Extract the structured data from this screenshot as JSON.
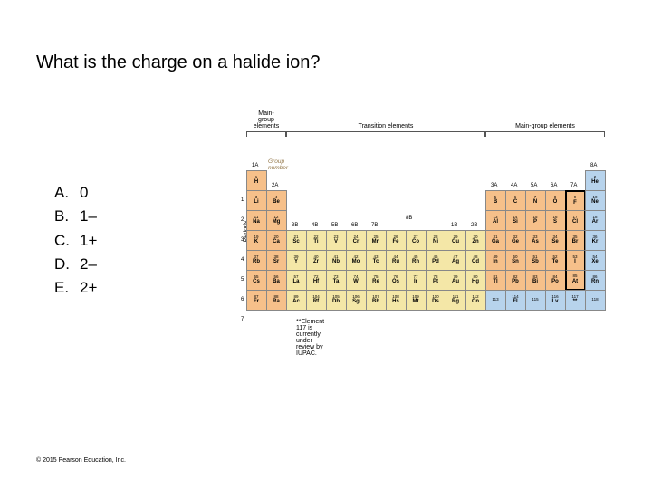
{
  "question": "What is the charge on a halide ion?",
  "choices": [
    {
      "letter": "A.",
      "text": "0"
    },
    {
      "letter": "B.",
      "text": "1–"
    },
    {
      "letter": "C.",
      "text": "1+"
    },
    {
      "letter": "D.",
      "text": "2–"
    },
    {
      "letter": "E.",
      "text": "2+"
    }
  ],
  "copyright": "© 2015  Pearson Education, Inc.",
  "ptable": {
    "group_number_label": "Group\nnumber",
    "braces": {
      "left_main": "Main-\ngroup\nelements",
      "transition": "Transition elements",
      "right_main": "Main-group elements"
    },
    "periods_label": "Periods",
    "period_numbers": [
      "1",
      "2",
      "3",
      "4",
      "5",
      "6",
      "7"
    ],
    "group_headers": {
      "g1": "1A",
      "g2": "2A",
      "g3": "3B",
      "g4": "4B",
      "g5": "5B",
      "g6": "6B",
      "g7": "7B",
      "g8": "8B",
      "g11": "1B",
      "g12": "2B",
      "g13": "3A",
      "g14": "4A",
      "g15": "5A",
      "g16": "6A",
      "g17": "7A",
      "g18": "8A"
    },
    "iupac_note": "**Element 117 is currently under review by IUPAC.",
    "colors": {
      "c-orange": "#f6c08a",
      "c-blue": "#b7d3ec",
      "c-yellow": "#f4e7a7",
      "c-grey": "#d6d6d6",
      "border": "#888888",
      "heavy": "#000000"
    },
    "elements": [
      {
        "r": 1,
        "c": 1,
        "n": "1",
        "s": "H",
        "cls": "c-orange"
      },
      {
        "r": 1,
        "c": 18,
        "n": "2",
        "s": "He",
        "cls": "c-blue"
      },
      {
        "r": 2,
        "c": 1,
        "n": "3",
        "s": "Li",
        "cls": "c-orange"
      },
      {
        "r": 2,
        "c": 2,
        "n": "4",
        "s": "Be",
        "cls": "c-orange"
      },
      {
        "r": 2,
        "c": 13,
        "n": "5",
        "s": "B",
        "cls": "c-orange"
      },
      {
        "r": 2,
        "c": 14,
        "n": "6",
        "s": "C",
        "cls": "c-orange"
      },
      {
        "r": 2,
        "c": 15,
        "n": "7",
        "s": "N",
        "cls": "c-orange"
      },
      {
        "r": 2,
        "c": 16,
        "n": "8",
        "s": "O",
        "cls": "c-orange"
      },
      {
        "r": 2,
        "c": 17,
        "n": "9",
        "s": "F",
        "cls": "c-orange"
      },
      {
        "r": 2,
        "c": 18,
        "n": "10",
        "s": "Ne",
        "cls": "c-blue"
      },
      {
        "r": 3,
        "c": 1,
        "n": "11",
        "s": "Na",
        "cls": "c-orange"
      },
      {
        "r": 3,
        "c": 2,
        "n": "12",
        "s": "Mg",
        "cls": "c-orange"
      },
      {
        "r": 3,
        "c": 13,
        "n": "13",
        "s": "Al",
        "cls": "c-orange"
      },
      {
        "r": 3,
        "c": 14,
        "n": "14",
        "s": "Si",
        "cls": "c-orange"
      },
      {
        "r": 3,
        "c": 15,
        "n": "15",
        "s": "P",
        "cls": "c-orange"
      },
      {
        "r": 3,
        "c": 16,
        "n": "16",
        "s": "S",
        "cls": "c-orange"
      },
      {
        "r": 3,
        "c": 17,
        "n": "17",
        "s": "Cl",
        "cls": "c-orange"
      },
      {
        "r": 3,
        "c": 18,
        "n": "18",
        "s": "Ar",
        "cls": "c-blue"
      },
      {
        "r": 4,
        "c": 1,
        "n": "19",
        "s": "K",
        "cls": "c-orange"
      },
      {
        "r": 4,
        "c": 2,
        "n": "20",
        "s": "Ca",
        "cls": "c-orange"
      },
      {
        "r": 4,
        "c": 3,
        "n": "21",
        "s": "Sc",
        "cls": "c-yellow"
      },
      {
        "r": 4,
        "c": 4,
        "n": "22",
        "s": "Ti",
        "cls": "c-yellow"
      },
      {
        "r": 4,
        "c": 5,
        "n": "23",
        "s": "V",
        "cls": "c-yellow"
      },
      {
        "r": 4,
        "c": 6,
        "n": "24",
        "s": "Cr",
        "cls": "c-yellow"
      },
      {
        "r": 4,
        "c": 7,
        "n": "25",
        "s": "Mn",
        "cls": "c-yellow"
      },
      {
        "r": 4,
        "c": 8,
        "n": "26",
        "s": "Fe",
        "cls": "c-yellow"
      },
      {
        "r": 4,
        "c": 9,
        "n": "27",
        "s": "Co",
        "cls": "c-yellow"
      },
      {
        "r": 4,
        "c": 10,
        "n": "28",
        "s": "Ni",
        "cls": "c-yellow"
      },
      {
        "r": 4,
        "c": 11,
        "n": "29",
        "s": "Cu",
        "cls": "c-yellow"
      },
      {
        "r": 4,
        "c": 12,
        "n": "30",
        "s": "Zn",
        "cls": "c-yellow"
      },
      {
        "r": 4,
        "c": 13,
        "n": "31",
        "s": "Ga",
        "cls": "c-orange"
      },
      {
        "r": 4,
        "c": 14,
        "n": "32",
        "s": "Ge",
        "cls": "c-orange"
      },
      {
        "r": 4,
        "c": 15,
        "n": "33",
        "s": "As",
        "cls": "c-orange"
      },
      {
        "r": 4,
        "c": 16,
        "n": "34",
        "s": "Se",
        "cls": "c-orange"
      },
      {
        "r": 4,
        "c": 17,
        "n": "35",
        "s": "Br",
        "cls": "c-orange"
      },
      {
        "r": 4,
        "c": 18,
        "n": "36",
        "s": "Kr",
        "cls": "c-blue"
      },
      {
        "r": 5,
        "c": 1,
        "n": "37",
        "s": "Rb",
        "cls": "c-orange"
      },
      {
        "r": 5,
        "c": 2,
        "n": "38",
        "s": "Sr",
        "cls": "c-orange"
      },
      {
        "r": 5,
        "c": 3,
        "n": "39",
        "s": "Y",
        "cls": "c-yellow"
      },
      {
        "r": 5,
        "c": 4,
        "n": "40",
        "s": "Zr",
        "cls": "c-yellow"
      },
      {
        "r": 5,
        "c": 5,
        "n": "41",
        "s": "Nb",
        "cls": "c-yellow"
      },
      {
        "r": 5,
        "c": 6,
        "n": "42",
        "s": "Mo",
        "cls": "c-yellow"
      },
      {
        "r": 5,
        "c": 7,
        "n": "43",
        "s": "Tc",
        "cls": "c-yellow"
      },
      {
        "r": 5,
        "c": 8,
        "n": "44",
        "s": "Ru",
        "cls": "c-yellow"
      },
      {
        "r": 5,
        "c": 9,
        "n": "45",
        "s": "Rh",
        "cls": "c-yellow"
      },
      {
        "r": 5,
        "c": 10,
        "n": "46",
        "s": "Pd",
        "cls": "c-yellow"
      },
      {
        "r": 5,
        "c": 11,
        "n": "47",
        "s": "Ag",
        "cls": "c-yellow"
      },
      {
        "r": 5,
        "c": 12,
        "n": "48",
        "s": "Cd",
        "cls": "c-yellow"
      },
      {
        "r": 5,
        "c": 13,
        "n": "49",
        "s": "In",
        "cls": "c-orange"
      },
      {
        "r": 5,
        "c": 14,
        "n": "50",
        "s": "Sn",
        "cls": "c-orange"
      },
      {
        "r": 5,
        "c": 15,
        "n": "51",
        "s": "Sb",
        "cls": "c-orange"
      },
      {
        "r": 5,
        "c": 16,
        "n": "52",
        "s": "Te",
        "cls": "c-orange"
      },
      {
        "r": 5,
        "c": 17,
        "n": "53",
        "s": "I",
        "cls": "c-orange"
      },
      {
        "r": 5,
        "c": 18,
        "n": "54",
        "s": "Xe",
        "cls": "c-blue"
      },
      {
        "r": 6,
        "c": 1,
        "n": "55",
        "s": "Cs",
        "cls": "c-orange"
      },
      {
        "r": 6,
        "c": 2,
        "n": "56",
        "s": "Ba",
        "cls": "c-orange"
      },
      {
        "r": 6,
        "c": 3,
        "n": "57",
        "s": "La",
        "cls": "c-yellow"
      },
      {
        "r": 6,
        "c": 4,
        "n": "72",
        "s": "Hf",
        "cls": "c-yellow"
      },
      {
        "r": 6,
        "c": 5,
        "n": "73",
        "s": "Ta",
        "cls": "c-yellow"
      },
      {
        "r": 6,
        "c": 6,
        "n": "74",
        "s": "W",
        "cls": "c-yellow"
      },
      {
        "r": 6,
        "c": 7,
        "n": "75",
        "s": "Re",
        "cls": "c-yellow"
      },
      {
        "r": 6,
        "c": 8,
        "n": "76",
        "s": "Os",
        "cls": "c-yellow"
      },
      {
        "r": 6,
        "c": 9,
        "n": "77",
        "s": "Ir",
        "cls": "c-yellow"
      },
      {
        "r": 6,
        "c": 10,
        "n": "78",
        "s": "Pt",
        "cls": "c-yellow"
      },
      {
        "r": 6,
        "c": 11,
        "n": "79",
        "s": "Au",
        "cls": "c-yellow"
      },
      {
        "r": 6,
        "c": 12,
        "n": "80",
        "s": "Hg",
        "cls": "c-yellow"
      },
      {
        "r": 6,
        "c": 13,
        "n": "81",
        "s": "Tl",
        "cls": "c-orange"
      },
      {
        "r": 6,
        "c": 14,
        "n": "82",
        "s": "Pb",
        "cls": "c-orange"
      },
      {
        "r": 6,
        "c": 15,
        "n": "83",
        "s": "Bi",
        "cls": "c-orange"
      },
      {
        "r": 6,
        "c": 16,
        "n": "84",
        "s": "Po",
        "cls": "c-orange"
      },
      {
        "r": 6,
        "c": 17,
        "n": "85",
        "s": "At",
        "cls": "c-orange"
      },
      {
        "r": 6,
        "c": 18,
        "n": "86",
        "s": "Rn",
        "cls": "c-blue"
      },
      {
        "r": 7,
        "c": 1,
        "n": "87",
        "s": "Fr",
        "cls": "c-orange"
      },
      {
        "r": 7,
        "c": 2,
        "n": "88",
        "s": "Ra",
        "cls": "c-orange"
      },
      {
        "r": 7,
        "c": 3,
        "n": "89",
        "s": "Ac",
        "cls": "c-yellow"
      },
      {
        "r": 7,
        "c": 4,
        "n": "104",
        "s": "Rf",
        "cls": "c-yellow"
      },
      {
        "r": 7,
        "c": 5,
        "n": "105",
        "s": "Db",
        "cls": "c-yellow"
      },
      {
        "r": 7,
        "c": 6,
        "n": "106",
        "s": "Sg",
        "cls": "c-yellow"
      },
      {
        "r": 7,
        "c": 7,
        "n": "107",
        "s": "Bh",
        "cls": "c-yellow"
      },
      {
        "r": 7,
        "c": 8,
        "n": "108",
        "s": "Hs",
        "cls": "c-yellow"
      },
      {
        "r": 7,
        "c": 9,
        "n": "109",
        "s": "Mt",
        "cls": "c-yellow"
      },
      {
        "r": 7,
        "c": 10,
        "n": "110",
        "s": "Ds",
        "cls": "c-yellow"
      },
      {
        "r": 7,
        "c": 11,
        "n": "111",
        "s": "Rg",
        "cls": "c-yellow"
      },
      {
        "r": 7,
        "c": 12,
        "n": "112",
        "s": "Cn",
        "cls": "c-yellow"
      },
      {
        "r": 7,
        "c": 13,
        "n": "113",
        "s": "",
        "cls": "c-blue"
      },
      {
        "r": 7,
        "c": 14,
        "n": "114",
        "s": "Fl",
        "cls": "c-blue"
      },
      {
        "r": 7,
        "c": 15,
        "n": "115",
        "s": "",
        "cls": "c-blue"
      },
      {
        "r": 7,
        "c": 16,
        "n": "116",
        "s": "Lv",
        "cls": "c-blue"
      },
      {
        "r": 7,
        "c": 17,
        "n": "117",
        "s": "**",
        "cls": "c-blue"
      },
      {
        "r": 7,
        "c": 18,
        "n": "118",
        "s": "",
        "cls": "c-blue"
      }
    ]
  }
}
